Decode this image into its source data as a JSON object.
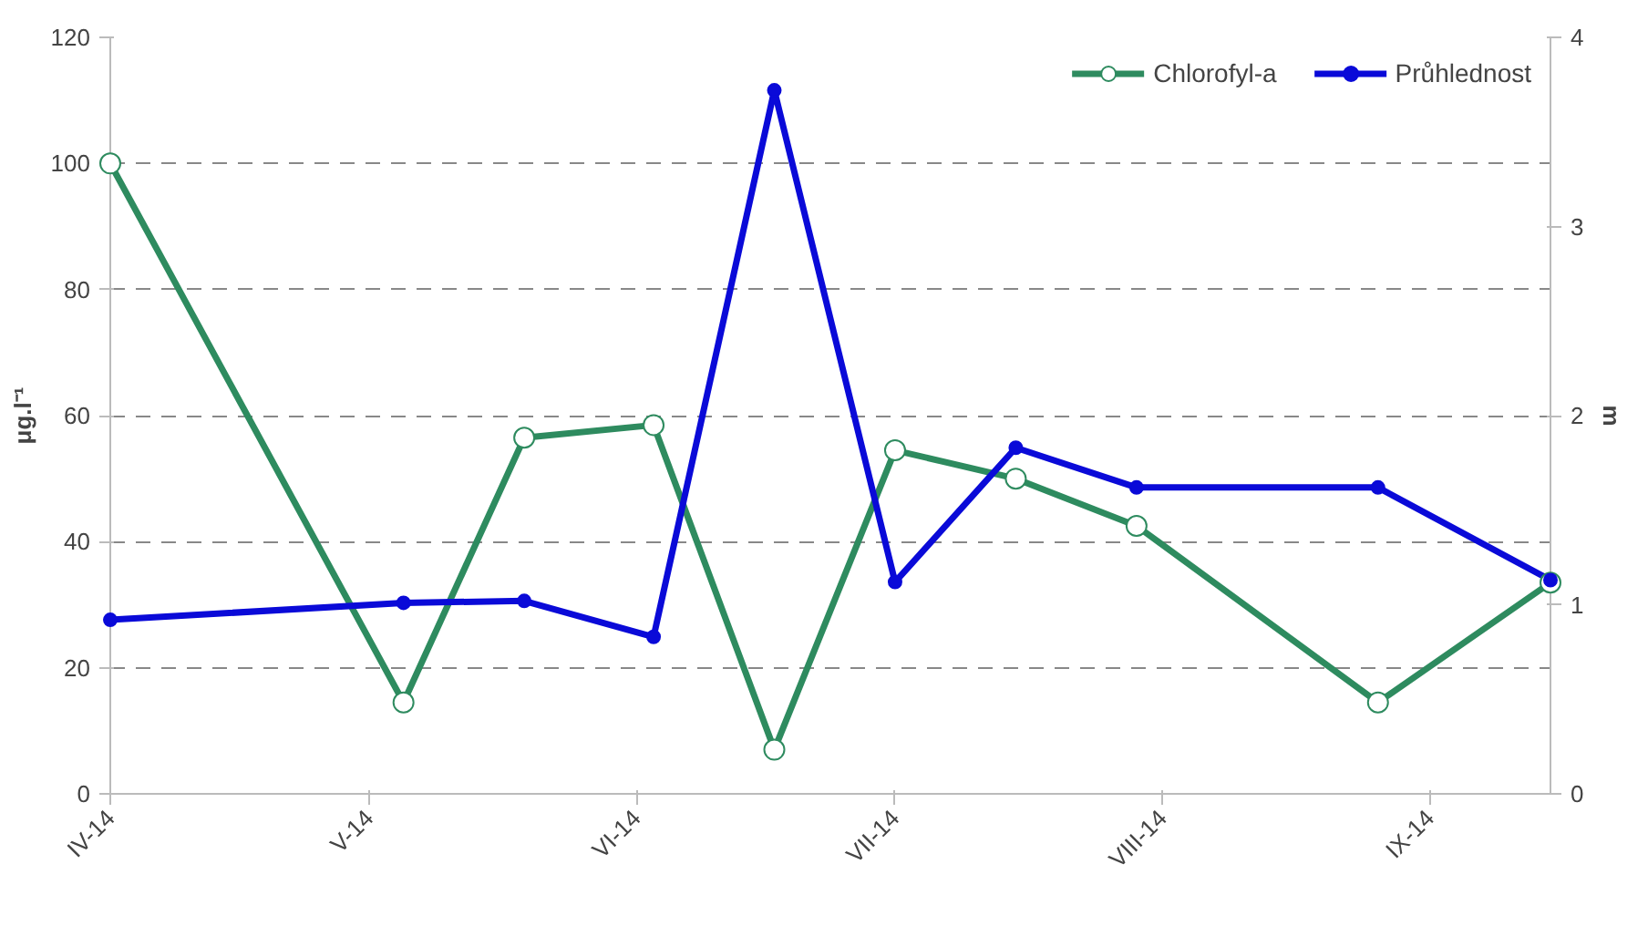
{
  "chart_data": {
    "type": "line",
    "x": [
      "2014-04-01",
      "2014-05-05",
      "2014-05-19",
      "2014-06-03",
      "2014-06-17",
      "2014-07-01",
      "2014-07-15",
      "2014-07-29",
      "2014-08-26",
      "2014-09-15"
    ],
    "series": [
      {
        "name": "Chlorofyl-a",
        "color": "#2e8b5f",
        "values": [
          100,
          14.5,
          56.5,
          58.5,
          7,
          54.5,
          50,
          42.5,
          14.5,
          33.5
        ]
      },
      {
        "name": "Průhlednost",
        "color": "#0a0ad8",
        "axis": "y2",
        "values": [
          0.92,
          1.01,
          1.02,
          0.83,
          3.72,
          1.12,
          1.83,
          1.62,
          1.62,
          1.13
        ]
      }
    ],
    "ylabel": "μg.l⁻¹",
    "y2label": "m",
    "xlim": [
      "2014-04-01",
      "2014-09-15"
    ],
    "xticks": [
      {
        "value": "2014-04-01",
        "label": "IV-14"
      },
      {
        "value": "2014-05-01",
        "label": "V-14"
      },
      {
        "value": "2014-06-01",
        "label": "VI-14"
      },
      {
        "value": "2014-07-01",
        "label": "VII-14"
      },
      {
        "value": "2014-08-01",
        "label": "VIII-14"
      },
      {
        "value": "2014-09-01",
        "label": "IX-14"
      }
    ],
    "ylim": [
      0,
      120
    ],
    "yticks": [
      0,
      20,
      40,
      60,
      80,
      100,
      120
    ],
    "y2lim": [
      0,
      4
    ],
    "y2ticks": [
      0,
      1,
      2,
      3,
      4
    ],
    "grid": "y",
    "legend": "top right",
    "marker": "circle"
  }
}
